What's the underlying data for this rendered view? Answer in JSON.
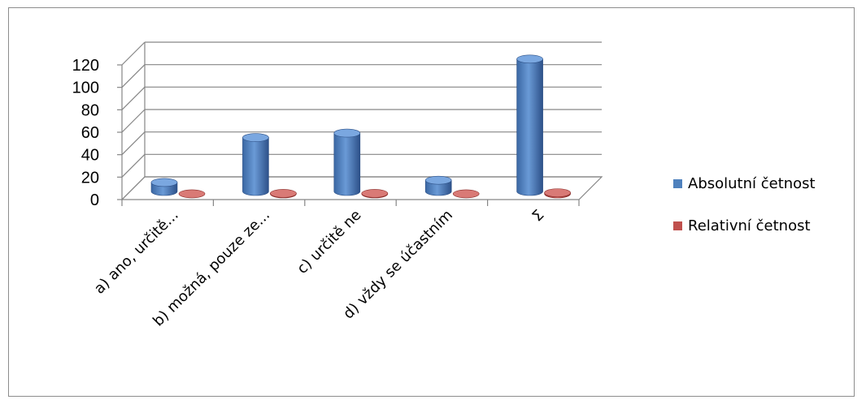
{
  "chart_data": {
    "type": "bar",
    "categories": [
      "a) ano, určitě...",
      "b) možná, pouze ze...",
      "c) určitě ne",
      "d) vždy se účastním",
      "Σ"
    ],
    "series": [
      {
        "name": "Absolutní četnost",
        "values": [
          8,
          48,
          52,
          10,
          118
        ],
        "color": "#4f81bd"
      },
      {
        "name": "Relativní četnost",
        "values": [
          0.07,
          0.41,
          0.44,
          0.08,
          1
        ],
        "color": "#c0504d"
      }
    ],
    "yticks": [
      "0",
      "20",
      "40",
      "60",
      "80",
      "100",
      "120"
    ],
    "ylim": [
      0,
      120
    ],
    "grid": true,
    "legend_position": "right",
    "style": "3d-cylinder"
  }
}
